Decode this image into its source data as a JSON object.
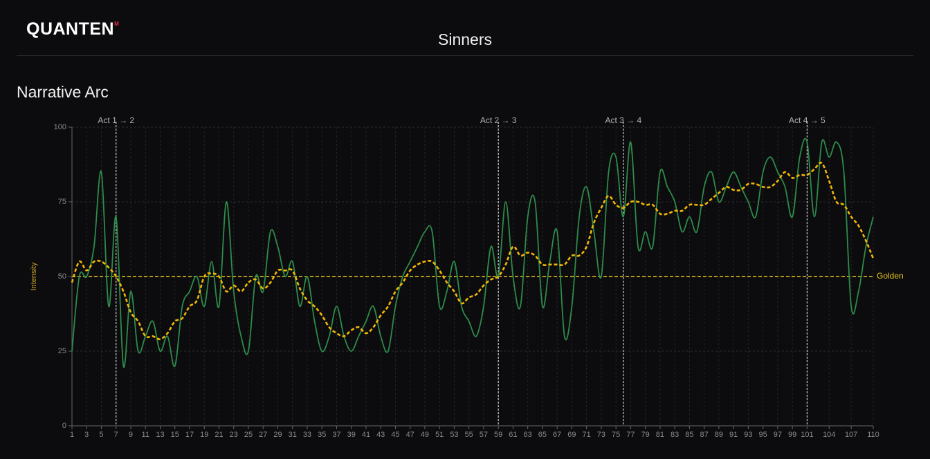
{
  "header": {
    "logo": "QUANTEN",
    "logo_mark": "M",
    "title": "Sinners"
  },
  "chart_data": {
    "type": "line",
    "title": "Narrative Arc",
    "y_label": "Intensity",
    "x": [
      1,
      2,
      3,
      4,
      5,
      6,
      7,
      8,
      9,
      10,
      11,
      12,
      13,
      14,
      15,
      16,
      17,
      18,
      19,
      20,
      21,
      22,
      23,
      24,
      25,
      26,
      27,
      28,
      29,
      30,
      31,
      32,
      33,
      34,
      35,
      36,
      37,
      38,
      39,
      40,
      41,
      42,
      43,
      44,
      45,
      46,
      47,
      48,
      49,
      50,
      51,
      52,
      53,
      54,
      55,
      56,
      57,
      58,
      59,
      60,
      61,
      62,
      63,
      64,
      65,
      66,
      67,
      68,
      69,
      70,
      71,
      72,
      73,
      74,
      75,
      76,
      77,
      78,
      79,
      80,
      81,
      82,
      83,
      84,
      85,
      86,
      87,
      88,
      89,
      90,
      91,
      92,
      93,
      94,
      95,
      96,
      97,
      98,
      99,
      100,
      101,
      102,
      103,
      104,
      105,
      106,
      107,
      108,
      109,
      110
    ],
    "series": [
      {
        "color": "#2e8b4a",
        "dashed": false,
        "values": [
          25,
          50,
          50,
          60,
          85,
          40,
          70,
          20,
          45,
          25,
          30,
          35,
          25,
          30,
          20,
          40,
          45,
          50,
          40,
          55,
          40,
          75,
          45,
          30,
          25,
          50,
          45,
          65,
          60,
          50,
          55,
          40,
          50,
          35,
          25,
          30,
          40,
          30,
          25,
          30,
          35,
          40,
          30,
          25,
          40,
          50,
          55,
          60,
          65,
          65,
          40,
          45,
          55,
          40,
          35,
          30,
          40,
          60,
          50,
          75,
          50,
          40,
          70,
          75,
          40,
          55,
          65,
          30,
          40,
          70,
          80,
          65,
          50,
          85,
          90,
          70,
          95,
          60,
          65,
          60,
          85,
          80,
          75,
          65,
          70,
          65,
          80,
          85,
          75,
          80,
          85,
          80,
          75,
          70,
          85,
          90,
          85,
          80,
          70,
          90,
          95,
          70,
          95,
          90,
          95,
          85,
          40,
          45,
          60,
          70
        ]
      },
      {
        "color": "#f2b705",
        "dashed": true,
        "values": [
          48,
          55,
          52,
          55,
          55,
          53,
          50,
          45,
          38,
          35,
          30,
          30,
          29,
          31,
          35,
          36,
          40,
          42,
          50,
          51,
          50,
          45,
          47,
          45,
          48,
          49,
          46,
          48,
          52,
          52,
          52,
          46,
          42,
          40,
          37,
          33,
          31,
          30,
          32,
          33,
          31,
          33,
          37,
          40,
          45,
          48,
          52,
          54,
          55,
          55,
          52,
          48,
          45,
          41,
          43,
          44,
          47,
          49,
          50,
          54,
          60,
          57,
          58,
          57,
          54,
          54,
          54,
          54,
          57,
          57,
          60,
          68,
          73,
          77,
          74,
          73,
          75,
          75,
          74,
          74,
          71,
          71,
          72,
          72,
          74,
          74,
          74,
          76,
          78,
          80,
          79,
          79,
          81,
          81,
          80,
          80,
          82,
          85,
          83,
          84,
          84,
          86,
          88,
          82,
          75,
          74,
          70,
          67,
          62,
          56
        ]
      }
    ],
    "xlim": [
      1,
      110
    ],
    "xticks": [
      1,
      3,
      5,
      7,
      9,
      11,
      13,
      15,
      17,
      19,
      21,
      23,
      25,
      27,
      29,
      31,
      33,
      35,
      37,
      39,
      41,
      43,
      45,
      47,
      49,
      51,
      53,
      55,
      57,
      59,
      61,
      63,
      65,
      67,
      69,
      71,
      73,
      75,
      77,
      79,
      81,
      83,
      85,
      87,
      89,
      91,
      93,
      95,
      97,
      99,
      101,
      104,
      107,
      110
    ],
    "ylim": [
      0,
      100
    ],
    "yticks": [
      0,
      25,
      50,
      75,
      100
    ],
    "grid": true,
    "vlines": [
      {
        "x": 7,
        "label": "Act 1 → 2"
      },
      {
        "x": 59,
        "label": "Act 2 → 3"
      },
      {
        "x": 76,
        "label": "Act 3 → 4"
      },
      {
        "x": 101,
        "label": "Act 4 → 5"
      }
    ],
    "hline": {
      "value": 50,
      "label": "Golden",
      "color": "#e6c619"
    }
  }
}
